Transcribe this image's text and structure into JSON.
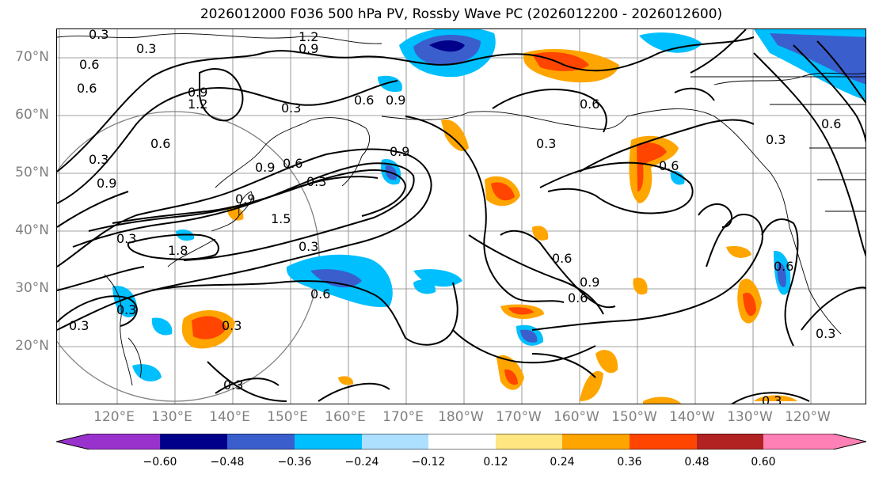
{
  "title": "2026012000 F036 500 hPa PV, Rossby Wave PC (2026012200 - 2026012600)",
  "lat_labels": [
    "70°N",
    "60°N",
    "50°N",
    "40°N",
    "30°N",
    "20°N"
  ],
  "lon_labels": [
    "120°E",
    "130°E",
    "140°E",
    "150°E",
    "160°E",
    "170°E",
    "180°W",
    "170°W",
    "160°W",
    "150°W",
    "140°W",
    "130°W",
    "120°W"
  ],
  "colorbar": {
    "colors": [
      "#9932CC",
      "#00008B",
      "#3A5FCD",
      "#00BFFF",
      "#ADDFFF",
      "#FFFFFF",
      "#FFE680",
      "#FFA500",
      "#FF4500",
      "#B22222",
      "#FF80B4"
    ],
    "tick_labels": [
      "−0.60",
      "−0.48",
      "−0.36",
      "−0.24",
      "−0.12",
      "0.12",
      "0.24",
      "0.36",
      "0.48",
      "0.60"
    ]
  },
  "contour_labels": [
    "0.3",
    "0.3",
    "0.6",
    "1.2",
    "0.9",
    "0.6",
    "0.9",
    "1.2",
    "0.9",
    "0.3",
    "0.6",
    "0.9",
    "0.6",
    "0.3",
    "0.3",
    "0.6",
    "0.9",
    "0.6",
    "0.3",
    "0.6",
    "0.3",
    "0.6",
    "0.9",
    "0.3",
    "1.8",
    "1.5",
    "0.3",
    "0.6",
    "0.3",
    "0.3",
    "0.6",
    "0.9",
    "0.6",
    "0.6",
    "0.3",
    "0.9",
    "0.3",
    "0.3",
    "0.3"
  ],
  "legend_colors": {
    "contour": "#000000",
    "grid": "#808080",
    "coast": "#000000"
  }
}
